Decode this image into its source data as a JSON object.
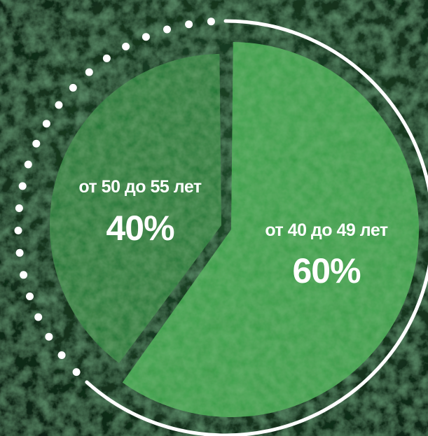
{
  "chart_data": {
    "type": "pie",
    "categories": [
      "от 40 до 49 лет",
      "от 50 до 55 лет"
    ],
    "values": [
      60,
      40
    ],
    "value_labels": [
      "60%",
      "40%"
    ],
    "colors": [
      "#3aa54a",
      "#1f7a34"
    ],
    "title": "",
    "background": "forest aerial photo"
  }
}
